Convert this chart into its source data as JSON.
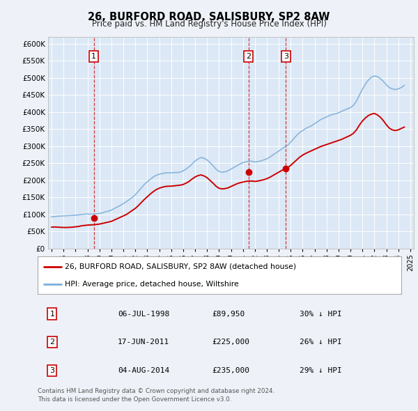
{
  "title": "26, BURFORD ROAD, SALISBURY, SP2 8AW",
  "subtitle": "Price paid vs. HM Land Registry's House Price Index (HPI)",
  "background_color": "#eef2f8",
  "plot_bg_color": "#dce8f5",
  "legend_line1": "26, BURFORD ROAD, SALISBURY, SP2 8AW (detached house)",
  "legend_line2": "HPI: Average price, detached house, Wiltshire",
  "footer": "Contains HM Land Registry data © Crown copyright and database right 2024.\nThis data is licensed under the Open Government Licence v3.0.",
  "transactions": [
    {
      "num": 1,
      "date": "06-JUL-1998",
      "price": 89950,
      "pct": "30%",
      "year": 1998.52
    },
    {
      "num": 2,
      "date": "17-JUN-2011",
      "price": 225000,
      "pct": "26%",
      "year": 2011.46
    },
    {
      "num": 3,
      "date": "04-AUG-2014",
      "price": 235000,
      "pct": "29%",
      "year": 2014.59
    }
  ],
  "hpi_years": [
    1995.0,
    1995.25,
    1995.5,
    1995.75,
    1996.0,
    1996.25,
    1996.5,
    1996.75,
    1997.0,
    1997.25,
    1997.5,
    1997.75,
    1998.0,
    1998.25,
    1998.5,
    1998.75,
    1999.0,
    1999.25,
    1999.5,
    1999.75,
    2000.0,
    2000.25,
    2000.5,
    2000.75,
    2001.0,
    2001.25,
    2001.5,
    2001.75,
    2002.0,
    2002.25,
    2002.5,
    2002.75,
    2003.0,
    2003.25,
    2003.5,
    2003.75,
    2004.0,
    2004.25,
    2004.5,
    2004.75,
    2005.0,
    2005.25,
    2005.5,
    2005.75,
    2006.0,
    2006.25,
    2006.5,
    2006.75,
    2007.0,
    2007.25,
    2007.5,
    2007.75,
    2008.0,
    2008.25,
    2008.5,
    2008.75,
    2009.0,
    2009.25,
    2009.5,
    2009.75,
    2010.0,
    2010.25,
    2010.5,
    2010.75,
    2011.0,
    2011.25,
    2011.5,
    2011.75,
    2012.0,
    2012.25,
    2012.5,
    2012.75,
    2013.0,
    2013.25,
    2013.5,
    2013.75,
    2014.0,
    2014.25,
    2014.5,
    2014.75,
    2015.0,
    2015.25,
    2015.5,
    2015.75,
    2016.0,
    2016.25,
    2016.5,
    2016.75,
    2017.0,
    2017.25,
    2017.5,
    2017.75,
    2018.0,
    2018.25,
    2018.5,
    2018.75,
    2019.0,
    2019.25,
    2019.5,
    2019.75,
    2020.0,
    2020.25,
    2020.5,
    2020.75,
    2021.0,
    2021.25,
    2021.5,
    2021.75,
    2022.0,
    2022.25,
    2022.5,
    2022.75,
    2023.0,
    2023.25,
    2023.5,
    2023.75,
    2024.0,
    2024.25,
    2024.5
  ],
  "hpi_values": [
    93000,
    94000,
    95000,
    95500,
    96000,
    96500,
    97000,
    97500,
    98000,
    99000,
    100000,
    101000,
    101500,
    101000,
    101000,
    102000,
    103000,
    105000,
    108000,
    110000,
    113000,
    118000,
    122000,
    127000,
    132000,
    138000,
    144000,
    150000,
    158000,
    168000,
    178000,
    188000,
    196000,
    203000,
    210000,
    215000,
    218000,
    220000,
    222000,
    222000,
    222000,
    223000,
    223000,
    224000,
    228000,
    233000,
    240000,
    248000,
    257000,
    263000,
    267000,
    265000,
    260000,
    252000,
    243000,
    233000,
    226000,
    224000,
    225000,
    228000,
    233000,
    238000,
    243000,
    248000,
    252000,
    254000,
    256000,
    256000,
    254000,
    255000,
    257000,
    260000,
    263000,
    268000,
    274000,
    280000,
    286000,
    292000,
    298000,
    303000,
    312000,
    322000,
    332000,
    340000,
    346000,
    352000,
    356000,
    360000,
    366000,
    372000,
    378000,
    382000,
    386000,
    390000,
    393000,
    395000,
    398000,
    402000,
    406000,
    410000,
    413000,
    420000,
    432000,
    450000,
    467000,
    482000,
    494000,
    502000,
    506000,
    504000,
    498000,
    490000,
    480000,
    472000,
    468000,
    466000,
    468000,
    472000,
    478000
  ],
  "red_years": [
    1995.0,
    1995.25,
    1995.5,
    1995.75,
    1996.0,
    1996.25,
    1996.5,
    1996.75,
    1997.0,
    1997.25,
    1997.5,
    1997.75,
    1998.0,
    1998.25,
    1998.5,
    1998.75,
    1999.0,
    1999.25,
    1999.5,
    1999.75,
    2000.0,
    2000.25,
    2000.5,
    2000.75,
    2001.0,
    2001.25,
    2001.5,
    2001.75,
    2002.0,
    2002.25,
    2002.5,
    2002.75,
    2003.0,
    2003.25,
    2003.5,
    2003.75,
    2004.0,
    2004.25,
    2004.5,
    2004.75,
    2005.0,
    2005.25,
    2005.5,
    2005.75,
    2006.0,
    2006.25,
    2006.5,
    2006.75,
    2007.0,
    2007.25,
    2007.5,
    2007.75,
    2008.0,
    2008.25,
    2008.5,
    2008.75,
    2009.0,
    2009.25,
    2009.5,
    2009.75,
    2010.0,
    2010.25,
    2010.5,
    2010.75,
    2011.0,
    2011.25,
    2011.5,
    2011.75,
    2012.0,
    2012.25,
    2012.5,
    2012.75,
    2013.0,
    2013.25,
    2013.5,
    2013.75,
    2014.0,
    2014.25,
    2014.5,
    2014.75,
    2015.0,
    2015.25,
    2015.5,
    2015.75,
    2016.0,
    2016.25,
    2016.5,
    2016.75,
    2017.0,
    2017.25,
    2017.5,
    2017.75,
    2018.0,
    2018.25,
    2018.5,
    2018.75,
    2019.0,
    2019.25,
    2019.5,
    2019.75,
    2020.0,
    2020.25,
    2020.5,
    2020.75,
    2021.0,
    2021.25,
    2021.5,
    2021.75,
    2022.0,
    2022.25,
    2022.5,
    2022.75,
    2023.0,
    2023.25,
    2023.5,
    2023.75,
    2024.0,
    2024.25,
    2024.5
  ],
  "red_values": [
    63000,
    63500,
    63000,
    62500,
    62000,
    62000,
    62500,
    63000,
    64000,
    65000,
    67000,
    68000,
    69000,
    69500,
    70000,
    71000,
    72000,
    74000,
    76000,
    78000,
    80000,
    84000,
    88000,
    92000,
    96000,
    100000,
    106000,
    112000,
    118000,
    126000,
    135000,
    144000,
    152000,
    160000,
    167000,
    173000,
    177000,
    180000,
    182000,
    183000,
    183000,
    184000,
    185000,
    186000,
    188000,
    192000,
    197000,
    204000,
    210000,
    214000,
    216000,
    213000,
    208000,
    200000,
    192000,
    183000,
    177000,
    175000,
    176000,
    178000,
    182000,
    186000,
    190000,
    193000,
    195000,
    197000,
    198000,
    198000,
    197000,
    198000,
    200000,
    202000,
    205000,
    209000,
    214000,
    219000,
    224000,
    229000,
    234000,
    237000,
    244000,
    252000,
    260000,
    268000,
    274000,
    279000,
    283000,
    287000,
    291000,
    295000,
    299000,
    302000,
    305000,
    308000,
    311000,
    314000,
    317000,
    320000,
    324000,
    328000,
    332000,
    338000,
    348000,
    362000,
    374000,
    383000,
    390000,
    394000,
    396000,
    392000,
    385000,
    375000,
    363000,
    353000,
    348000,
    346000,
    348000,
    352000,
    356000
  ],
  "ylim": [
    0,
    620000
  ],
  "xlim": [
    1994.7,
    2025.3
  ],
  "yticks": [
    0,
    50000,
    100000,
    150000,
    200000,
    250000,
    300000,
    350000,
    400000,
    450000,
    500000,
    550000,
    600000
  ],
  "xticks": [
    1995,
    1996,
    1997,
    1998,
    1999,
    2000,
    2001,
    2002,
    2003,
    2004,
    2005,
    2006,
    2007,
    2008,
    2009,
    2010,
    2011,
    2012,
    2013,
    2014,
    2015,
    2016,
    2017,
    2018,
    2019,
    2020,
    2021,
    2022,
    2023,
    2024,
    2025
  ],
  "red_color": "#cc0000",
  "blue_color": "#7aadda",
  "vline_color": "#cc0000"
}
